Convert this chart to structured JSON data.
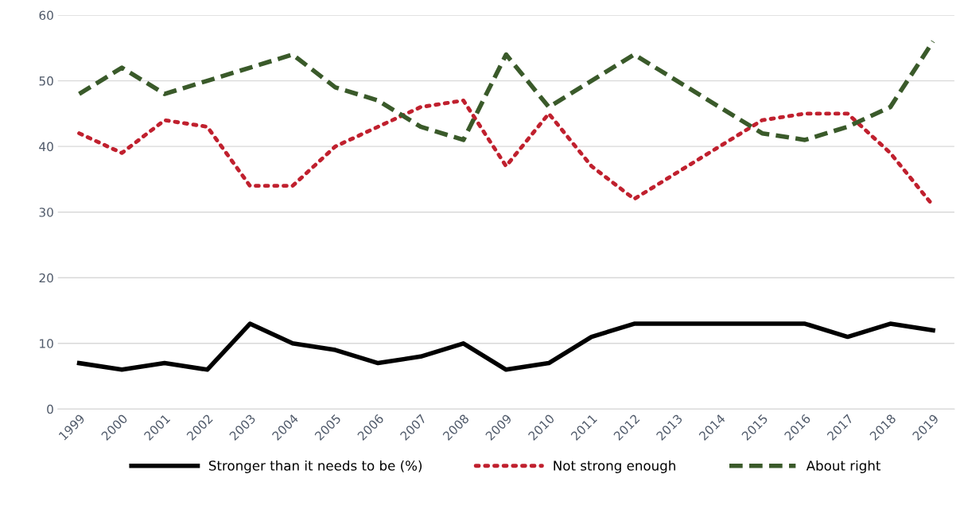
{
  "chart_data": {
    "type": "line",
    "categories": [
      "1999",
      "2000",
      "2001",
      "2002",
      "2003",
      "2004",
      "2005",
      "2006",
      "2007",
      "2008",
      "2009",
      "2010",
      "2011",
      "2012",
      "2013",
      "2014",
      "2015",
      "2016",
      "2017",
      "2018",
      "2019"
    ],
    "series": [
      {
        "name": "Stronger than it needs to be (%)",
        "color": "#000000",
        "line_style": "solid",
        "values": [
          7,
          6,
          7,
          6,
          13,
          10,
          9,
          7,
          8,
          10,
          6,
          7,
          11,
          13,
          13,
          13,
          13,
          13,
          11,
          13,
          12
        ]
      },
      {
        "name": "Not strong enough",
        "color": "#c0202e",
        "line_style": "dotted",
        "values": [
          42,
          39,
          44,
          43,
          34,
          34,
          40,
          43,
          46,
          47,
          37,
          45,
          37,
          32,
          36,
          40,
          44,
          45,
          45,
          39,
          31
        ]
      },
      {
        "name": "About right",
        "color": "#3a5a2a",
        "line_style": "dashed",
        "values": [
          48,
          52,
          48,
          50,
          52,
          54,
          49,
          47,
          43,
          41,
          54,
          46,
          50,
          54,
          50,
          46,
          42,
          41,
          43,
          46,
          56
        ]
      }
    ],
    "ylim": [
      0,
      60
    ],
    "yticks": [
      0,
      10,
      20,
      30,
      40,
      50,
      60
    ],
    "grid": "y",
    "legend": "bottom"
  }
}
